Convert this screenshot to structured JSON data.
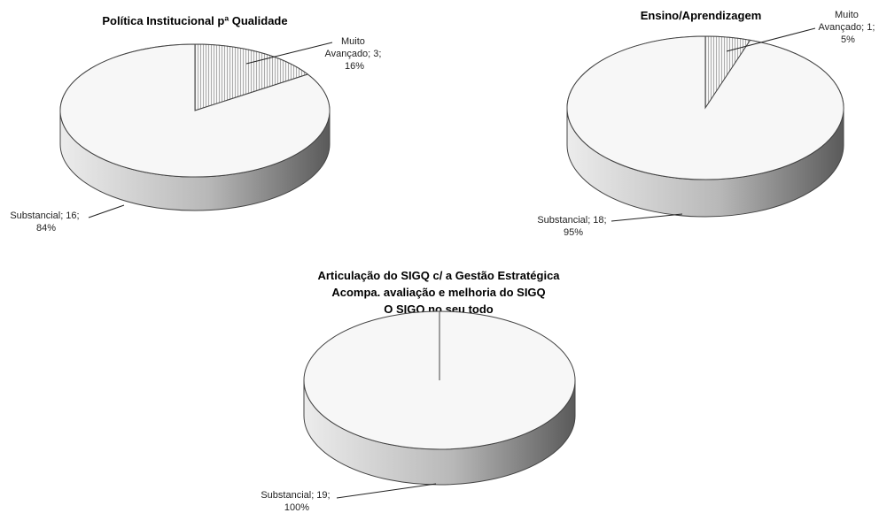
{
  "chart_data": [
    {
      "type": "pie",
      "title_lines": [
        "Política Institucional pª Qualidade"
      ],
      "slices": [
        {
          "name": "Muito Avançado",
          "value": 3,
          "percent": "16%",
          "label_lines": [
            "Muito",
            "Avançado; 3;",
            "16%"
          ]
        },
        {
          "name": "Substancial",
          "value": 16,
          "percent": "84%",
          "label_lines": [
            "Substancial; 16;",
            "84%"
          ]
        }
      ],
      "legend": "none"
    },
    {
      "type": "pie",
      "title_lines": [
        "Ensino/Aprendizagem"
      ],
      "slices": [
        {
          "name": "Muito Avançado",
          "value": 1,
          "percent": "5%",
          "label_lines": [
            "Muito",
            "Avançado; 1;",
            "5%"
          ]
        },
        {
          "name": "Substancial",
          "value": 18,
          "percent": "95%",
          "label_lines": [
            "Substancial; 18;",
            "95%"
          ]
        }
      ],
      "legend": "none"
    },
    {
      "type": "pie",
      "title_lines": [
        "Articulação do SIGQ c/ a Gestão Estratégica",
        "Acompa. avaliação e melhoria do SIGQ",
        "O SIGQ no seu todo"
      ],
      "slices": [
        {
          "name": "Substancial",
          "value": 19,
          "percent": "100%",
          "label_lines": [
            "Substancial; 19;",
            "100%"
          ]
        }
      ],
      "legend": "none"
    }
  ],
  "colors": {
    "pie_top": "#f7f7f7",
    "outline": "#444444",
    "hatch": "#9a9a9a",
    "side_light": "#ececec",
    "side_dark": "#5a5a5a",
    "leader": "#222222"
  }
}
